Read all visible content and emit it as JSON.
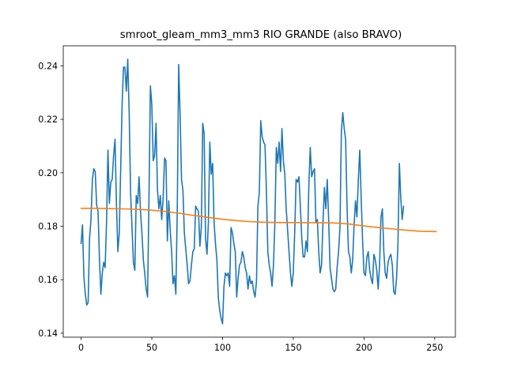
{
  "chart_data": {
    "type": "line",
    "title": "smroot_gleam_mm3_mm3 RIO GRANDE (also BRAVO)",
    "xlabel": "",
    "ylabel": "",
    "xlim": [
      -12.6,
      264.6
    ],
    "ylim": [
      0.1385,
      0.2475
    ],
    "grid": false,
    "xticks": [
      0,
      50,
      100,
      150,
      200,
      250
    ],
    "xtick_labels": [
      "0",
      "50",
      "100",
      "150",
      "200",
      "250"
    ],
    "yticks": [
      0.14,
      0.16,
      0.18,
      0.2,
      0.22,
      0.24
    ],
    "ytick_labels": [
      "0.14",
      "0.16",
      "0.18",
      "0.20",
      "0.22",
      "0.24"
    ],
    "colors": {
      "series_0": "#1f77b4",
      "series_1": "#ff7f0e"
    },
    "series": [
      {
        "x_start": 0,
        "values": [
          0.1735,
          0.1805,
          0.161,
          0.1545,
          0.1505,
          0.1515,
          0.1755,
          0.1825,
          0.1975,
          0.2015,
          0.2005,
          0.188,
          0.1855,
          0.1675,
          0.1545,
          0.1625,
          0.1665,
          0.1645,
          0.1815,
          0.2085,
          0.1885,
          0.1965,
          0.1975,
          0.2065,
          0.2125,
          0.1885,
          0.1705,
          0.1775,
          0.2015,
          0.2255,
          0.2395,
          0.2395,
          0.2305,
          0.2425,
          0.2225,
          0.1925,
          0.1795,
          0.1665,
          0.1635,
          0.1915,
          0.1885,
          0.1985,
          0.1855,
          0.1775,
          0.1675,
          0.1625,
          0.1565,
          0.1535,
          0.1905,
          0.2325,
          0.2255,
          0.2045,
          0.2065,
          0.2185,
          0.1935,
          0.1865,
          0.1915,
          0.1825,
          0.1905,
          0.2055,
          0.2045,
          0.1745,
          0.1895,
          0.1785,
          0.1705,
          0.1585,
          0.1615,
          0.1545,
          0.1865,
          0.2405,
          0.2215,
          0.1975,
          0.1935,
          0.1775,
          0.1715,
          0.1655,
          0.1585,
          0.1595,
          0.1655,
          0.1705,
          0.1715,
          0.1875,
          0.1865,
          0.1855,
          0.1725,
          0.1795,
          0.2185,
          0.2145,
          0.1755,
          0.1695,
          0.1815,
          0.2115,
          0.1995,
          0.2035,
          0.1815,
          0.1735,
          0.1675,
          0.1535,
          0.1485,
          0.1455,
          0.1435,
          0.1575,
          0.1625,
          0.1615,
          0.1625,
          0.1575,
          0.1795,
          0.1775,
          0.1735,
          0.1705,
          0.1535,
          0.1605,
          0.1655,
          0.1665,
          0.1705,
          0.1685,
          0.1645,
          0.1625,
          0.1565,
          0.1615,
          0.1585,
          0.1595,
          0.1555,
          0.1535,
          0.1595,
          0.1875,
          0.1925,
          0.2195,
          0.2135,
          0.2115,
          0.2105,
          0.1935,
          0.1705,
          0.1655,
          0.1625,
          0.1575,
          0.1655,
          0.1815,
          0.2095,
          0.2035,
          0.2115,
          0.2005,
          0.2165,
          0.2045,
          0.1995,
          0.1865,
          0.1785,
          0.1705,
          0.1625,
          0.1575,
          0.1625,
          0.1775,
          0.1975,
          0.1965,
          0.1985,
          0.1875,
          0.1755,
          0.1685,
          0.1685,
          0.1745,
          0.1705,
          0.1955,
          0.2095,
          0.1985,
          0.2005,
          0.2015,
          0.1815,
          0.1825,
          0.1705,
          0.1625,
          0.1655,
          0.1815,
          0.1945,
          0.1865,
          0.1975,
          0.1825,
          0.1645,
          0.1605,
          0.1565,
          0.1555,
          0.1565,
          0.1645,
          0.1705,
          0.1795,
          0.2155,
          0.2225,
          0.2165,
          0.2125,
          0.1875,
          0.1705,
          0.1685,
          0.1625,
          0.1675,
          0.1805,
          0.1895,
          0.1835,
          0.1975,
          0.2085,
          0.1905,
          0.1745,
          0.1625,
          0.1615,
          0.1685,
          0.1705,
          0.1635,
          0.1605,
          0.1585,
          0.1695,
          0.1675,
          0.1635,
          0.1565,
          0.1655,
          0.1835,
          0.1865,
          0.1705,
          0.1625,
          0.1605,
          0.1665,
          0.1685,
          0.1695,
          0.1655,
          0.1555,
          0.1545,
          0.1605,
          0.1735,
          0.2035,
          0.1905,
          0.1825,
          0.1875
        ]
      },
      {
        "x": [
          0,
          10,
          20,
          30,
          40,
          50,
          60,
          70,
          80,
          90,
          100,
          110,
          120,
          130,
          140,
          150,
          160,
          170,
          180,
          190,
          200,
          210,
          220,
          230,
          240,
          251
        ],
        "values": [
          0.1867,
          0.1867,
          0.1866,
          0.1865,
          0.1863,
          0.186,
          0.1855,
          0.1848,
          0.184,
          0.1833,
          0.1826,
          0.1821,
          0.1817,
          0.1815,
          0.1814,
          0.1814,
          0.1813,
          0.1813,
          0.1812,
          0.1808,
          0.1801,
          0.1795,
          0.179,
          0.1785,
          0.1781,
          0.178
        ]
      }
    ]
  }
}
